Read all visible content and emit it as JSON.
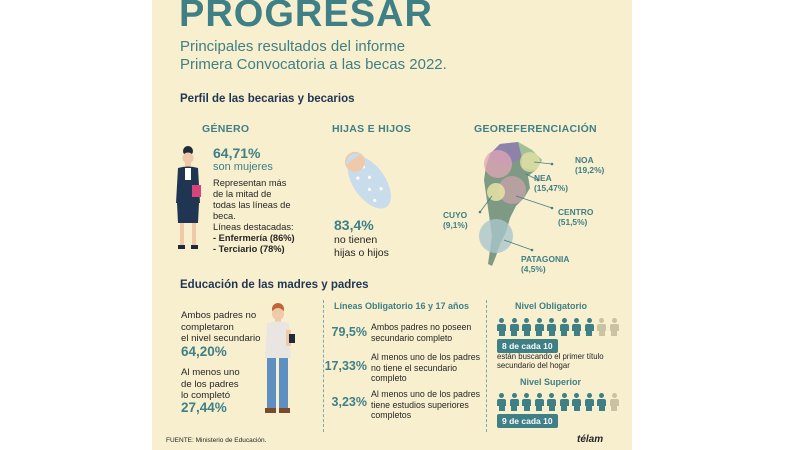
{
  "header": {
    "title": "PROGRESAR",
    "subtitle_1": "Principales resultados del informe",
    "subtitle_2": "Primera Convocatoria a las becas 2022."
  },
  "perfil": {
    "heading": "Perfil de las becarias y becarios",
    "genero": {
      "heading": "GÉNERO",
      "percent": "64,71%",
      "sub": "son mujeres",
      "text_1": "Representan más",
      "text_2": "de la mitad de",
      "text_3": "todas las líneas de",
      "text_4": "beca.",
      "text_5": "Líneas destacadas:",
      "item_1": "-  Enfermería (86%)",
      "item_2": "-  Terciario (78%)"
    },
    "hijos": {
      "heading": "HIJAS E HIJOS",
      "percent": "83,4%",
      "text_1": "no tienen",
      "text_2": "hijas o hijos"
    },
    "geo": {
      "heading": "GEOREFERENCIACIÓN",
      "regions": [
        {
          "name": "NOA",
          "value": "(19,2%)"
        },
        {
          "name": "NEA",
          "value": "(15,47%)"
        },
        {
          "name": "CENTRO",
          "value": "(51,5%)"
        },
        {
          "name": "CUYO",
          "value": "(9,1%)"
        },
        {
          "name": "PATAGONIA",
          "value": "(4,5%)"
        }
      ]
    }
  },
  "educacion": {
    "heading": "Educación de las madres y padres",
    "left": {
      "text_1": "Ambos padres no",
      "text_2": "completaron",
      "text_3": "el nivel secundario",
      "pct_1": "64,20%",
      "text_4": "Al menos uno",
      "text_5": "de los padres",
      "text_6": "lo completó",
      "pct_2": "27,44%"
    },
    "lineas": {
      "heading": "Líneas Obligatorio 16 y 17 años",
      "rows": [
        {
          "pct": "79,5%",
          "line_1": "Ambos padres no poseen",
          "line_2": "secundario completo",
          "line_3": ""
        },
        {
          "pct": "17,33%",
          "line_1": "Al menos uno de los padres",
          "line_2": "no tiene el secundario",
          "line_3": "completo"
        },
        {
          "pct": "3,23%",
          "line_1": "Al menos uno de los padres",
          "line_2": "tiene estudios superiores",
          "line_3": "completos"
        }
      ]
    },
    "obligatorio": {
      "heading": "Nivel Obligatorio",
      "filled": 8,
      "total": 10,
      "badge": "8 de cada 10",
      "text_1": "están buscando el primer título",
      "text_2": "secundario del hogar"
    },
    "superior": {
      "heading": "Nivel Superior",
      "filled": 9,
      "total": 10,
      "badge": "9 de cada 10"
    }
  },
  "footer": {
    "source": "FUENTE: Ministerio de Educación.",
    "logo": "télam"
  },
  "colors": {
    "background": "#f8efcf",
    "teal": "#3f7f86",
    "navy": "#1f3552",
    "person_off": "#c9c3a4"
  }
}
